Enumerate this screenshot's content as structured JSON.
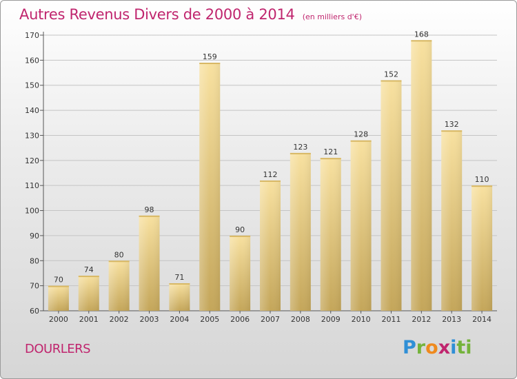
{
  "header": {
    "title": "Autres Revenus Divers de 2000 à 2014",
    "subtitle": "(en milliers d'€)"
  },
  "footer": {
    "place": "DOURLERS",
    "logo_letters": [
      "P",
      "r",
      "o",
      "x",
      "i",
      "ti"
    ]
  },
  "colors": {
    "title": "#c0256e",
    "bar_light": "#f7dd98",
    "bar_dark": "#c8aa5c",
    "grid": "#bfbfbf"
  },
  "chart_data": {
    "type": "bar",
    "title": "Autres Revenus Divers de 2000 à 2014",
    "subtitle": "(en milliers d'€)",
    "xlabel": "",
    "ylabel": "",
    "ylim": [
      60,
      170
    ],
    "yticks": [
      60,
      70,
      80,
      90,
      100,
      110,
      120,
      130,
      140,
      150,
      160,
      170
    ],
    "grid": true,
    "categories": [
      "2000",
      "2001",
      "2002",
      "2003",
      "2004",
      "2005",
      "2006",
      "2007",
      "2008",
      "2009",
      "2010",
      "2011",
      "2012",
      "2013",
      "2014"
    ],
    "values": [
      70,
      74,
      80,
      98,
      71,
      159,
      90,
      112,
      123,
      121,
      128,
      152,
      168,
      132,
      110
    ]
  }
}
